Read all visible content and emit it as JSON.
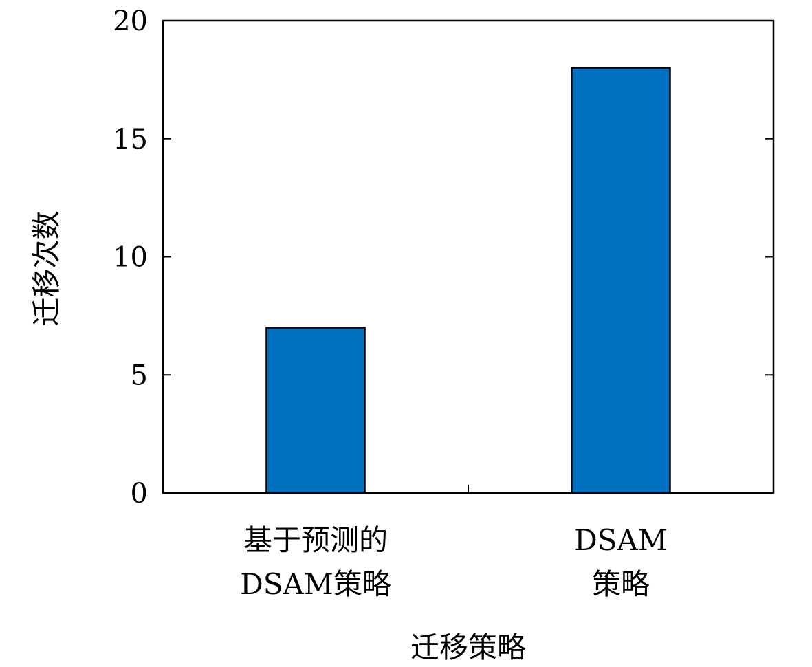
{
  "chart_data": {
    "type": "bar",
    "categories": [
      [
        "基于预测的",
        "DSAM策略"
      ],
      [
        "DSAM",
        "策略"
      ]
    ],
    "values": [
      7,
      18
    ],
    "title": "",
    "xlabel": "迁移策略",
    "ylabel": "迁移次数",
    "ylim": [
      0,
      20
    ],
    "yticks": [
      0,
      5,
      10,
      15,
      20
    ],
    "bar_color": "#0070C0",
    "grid": false,
    "legend": "none"
  }
}
